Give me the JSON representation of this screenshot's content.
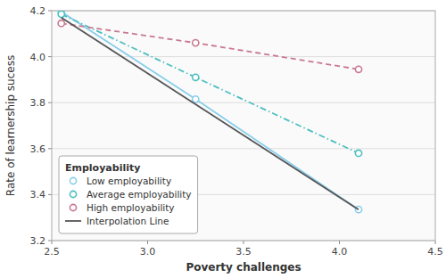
{
  "chart_data": {
    "type": "line",
    "xlabel": "Poverty challenges",
    "ylabel": "Rate of learnership sucess",
    "xlim": [
      2.5,
      4.5
    ],
    "ylim": [
      3.2,
      4.2
    ],
    "xticks": [
      2.5,
      {
        "value": 3,
        "label": "3.0"
      },
      3.5,
      {
        "value": 4,
        "label": "4.0"
      },
      4.5
    ],
    "yticks": [
      3.2,
      3.4,
      3.6,
      3.8,
      {
        "value": 4,
        "label": "4.0"
      },
      4.2
    ],
    "grid": true,
    "legend": "lower left",
    "legend_title": "Employability",
    "series": [
      {
        "name": "Low employability",
        "color": "#87ceeb",
        "marker": "circle",
        "line_style": "solid",
        "x": [
          2.55,
          3.25,
          4.1
        ],
        "values": [
          4.195,
          3.815,
          3.335
        ]
      },
      {
        "name": "Average employability",
        "color": "#4dbfbf",
        "marker": "circle",
        "line_style": "dashdot",
        "x": [
          2.55,
          3.25,
          4.1
        ],
        "values": [
          4.185,
          3.91,
          3.58
        ]
      },
      {
        "name": "High employability",
        "color": "#c87890",
        "marker": "circle",
        "line_style": "dashed",
        "x": [
          2.55,
          3.25,
          4.1
        ],
        "values": [
          4.145,
          4.06,
          3.945
        ]
      },
      {
        "name": "Interpolation Line",
        "color": "#555555",
        "marker": "none",
        "line_style": "solid",
        "x": [
          2.55,
          4.1
        ],
        "values": [
          4.17,
          3.335
        ]
      }
    ]
  }
}
